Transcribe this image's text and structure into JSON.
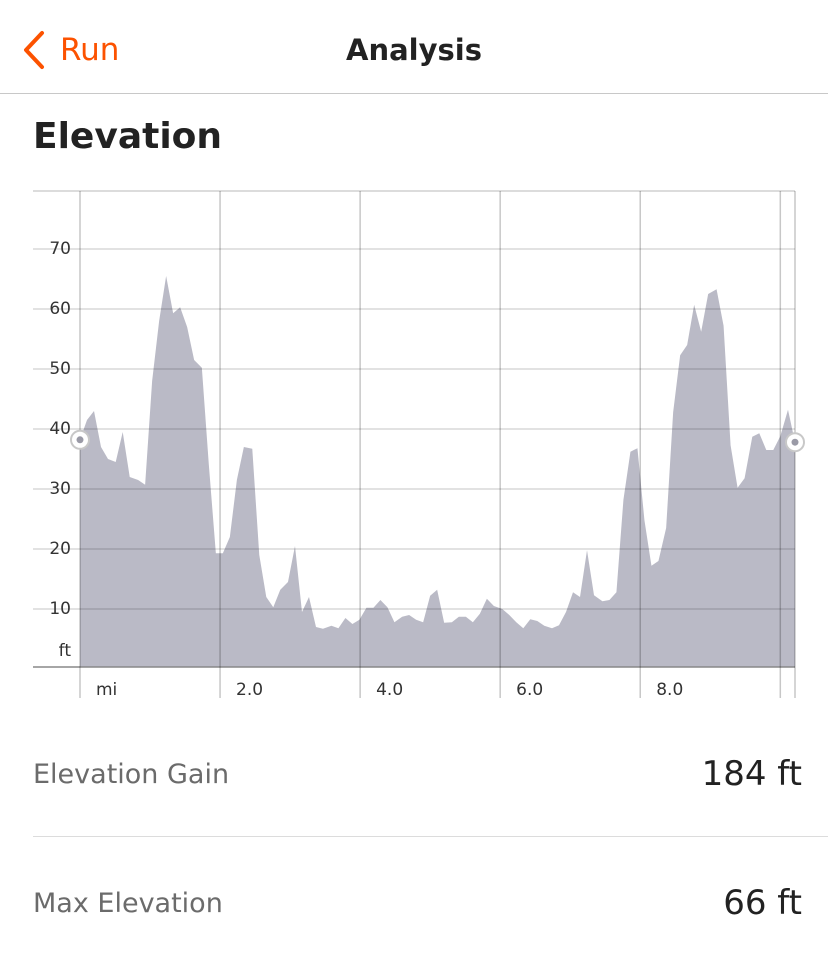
{
  "header": {
    "back": "Run",
    "title": "Analysis"
  },
  "section_title": "Elevation",
  "chart_data": {
    "type": "area",
    "color": "#babac6",
    "x_unit": "mi",
    "y_unit": "ft",
    "x": [
      0,
      0.1,
      0.2,
      0.3,
      0.4,
      0.51,
      0.61,
      0.71,
      0.83,
      0.93,
      1.03,
      1.13,
      1.23,
      1.33,
      1.43,
      1.53,
      1.63,
      1.74,
      1.84,
      1.94,
      2.04,
      2.14,
      2.24,
      2.34,
      2.46,
      2.56,
      2.66,
      2.76,
      2.86,
      2.97,
      3.07,
      3.17,
      3.27,
      3.37,
      3.47,
      3.59,
      3.69,
      3.79,
      3.89,
      3.99,
      4.09,
      4.19,
      4.29,
      4.39,
      4.49,
      4.6,
      4.7,
      4.8,
      4.9,
      5.0,
      5.1,
      5.2,
      5.31,
      5.41,
      5.51,
      5.61,
      5.71,
      5.81,
      5.91,
      6.03,
      6.13,
      6.23,
      6.33,
      6.43,
      6.53,
      6.63,
      6.74,
      6.84,
      6.94,
      7.04,
      7.14,
      7.24,
      7.34,
      7.46,
      7.56,
      7.66,
      7.76,
      7.86,
      7.96,
      8.06,
      8.16,
      8.26,
      8.37,
      8.47,
      8.57,
      8.67,
      8.77,
      8.87,
      8.97,
      9.09,
      9.19,
      9.29,
      9.39,
      9.49,
      9.6,
      9.7,
      9.8,
      9.9,
      10.0,
      10.11,
      10.21
    ],
    "values": [
      38.2,
      41.5,
      43,
      37,
      35,
      34.5,
      39.5,
      32,
      31.5,
      30.7,
      48,
      58,
      65.5,
      59.3,
      60.3,
      57,
      51.5,
      50.2,
      34,
      19.3,
      19.3,
      22,
      31.5,
      37,
      36.7,
      19,
      12,
      10.3,
      13.2,
      14.5,
      20.5,
      9.5,
      12,
      7,
      6.7,
      7.2,
      6.8,
      8.5,
      7.5,
      8.2,
      10.2,
      10.2,
      11.5,
      10.3,
      7.8,
      8.7,
      9,
      8.2,
      7.8,
      12.2,
      13.2,
      7.7,
      7.8,
      8.7,
      8.7,
      7.8,
      9.2,
      11.7,
      10.5,
      10,
      9,
      7.8,
      6.8,
      8.3,
      8,
      7.2,
      6.8,
      7.3,
      9.5,
      12.8,
      12,
      19.8,
      12.3,
      11.3,
      11.5,
      12.8,
      28.2,
      36.2,
      36.8,
      24.8,
      17.2,
      18,
      23.5,
      42.8,
      52.3,
      54,
      60.7,
      56.2,
      62.5,
      63.3,
      57.2,
      37.3,
      30.2,
      31.8,
      38.7,
      39.3,
      36.5,
      36.5,
      38.8,
      43.2,
      37.8
    ],
    "xlim": [
      0,
      10.21
    ],
    "ylim": [
      0,
      80
    ],
    "xticks": [
      {
        "value": 2,
        "label": "2.0"
      },
      {
        "value": 4,
        "label": "4.0"
      },
      {
        "value": 6,
        "label": "6.0"
      },
      {
        "value": 8,
        "label": "8.0"
      },
      {
        "value": 10,
        "label": null
      }
    ],
    "yticks": [
      10,
      20,
      30,
      40,
      50,
      60,
      70
    ],
    "grid": true
  },
  "stats": [
    {
      "label": "Elevation Gain",
      "value": "184 ft"
    },
    {
      "label": "Max Elevation",
      "value": "66 ft"
    }
  ]
}
